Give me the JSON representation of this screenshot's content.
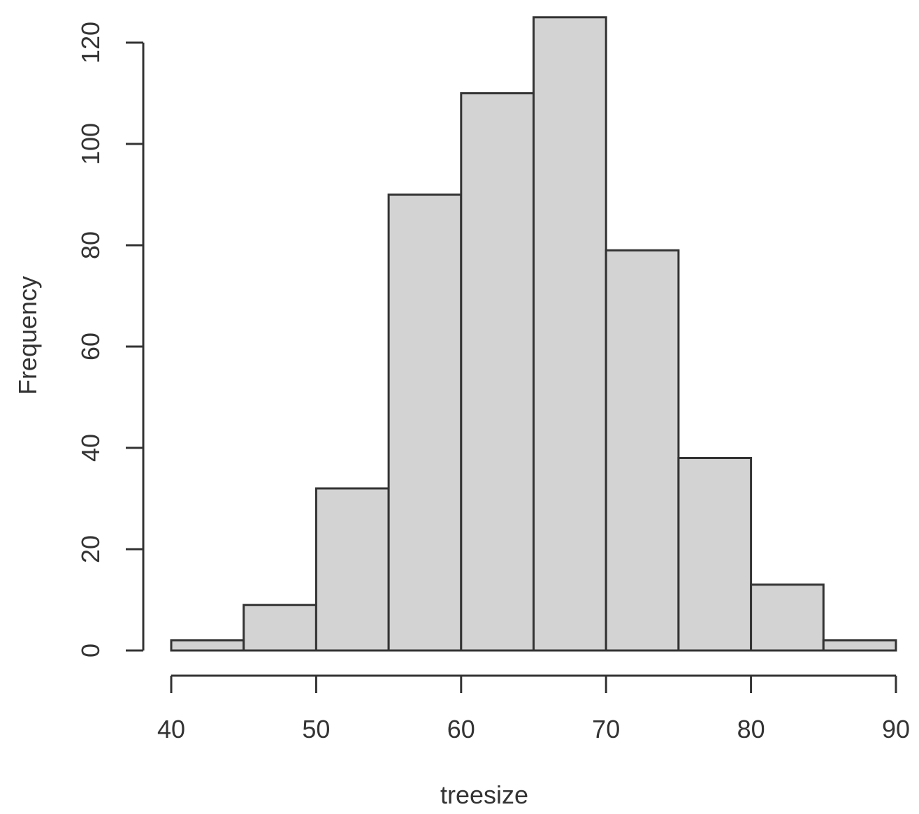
{
  "chart_data": {
    "type": "bar",
    "subtype": "histogram",
    "title": "",
    "xlabel": "treesize",
    "ylabel": "Frequency",
    "bins": [
      {
        "from": 40,
        "to": 45,
        "count": 2
      },
      {
        "from": 45,
        "to": 50,
        "count": 9
      },
      {
        "from": 50,
        "to": 55,
        "count": 32
      },
      {
        "from": 55,
        "to": 60,
        "count": 90
      },
      {
        "from": 60,
        "to": 65,
        "count": 110
      },
      {
        "from": 65,
        "to": 70,
        "count": 125
      },
      {
        "from": 70,
        "to": 75,
        "count": 79
      },
      {
        "from": 75,
        "to": 80,
        "count": 38
      },
      {
        "from": 80,
        "to": 85,
        "count": 13
      },
      {
        "from": 85,
        "to": 90,
        "count": 2
      }
    ],
    "xlim": [
      40,
      90
    ],
    "ylim": [
      0,
      125
    ],
    "x_ticks": [
      "40",
      "50",
      "60",
      "70",
      "80",
      "90"
    ],
    "y_ticks": [
      "0",
      "20",
      "40",
      "60",
      "80",
      "100",
      "120"
    ],
    "grid": false,
    "legend": "none",
    "bar_color": "#d3d3d3",
    "border_color": "#333333"
  }
}
